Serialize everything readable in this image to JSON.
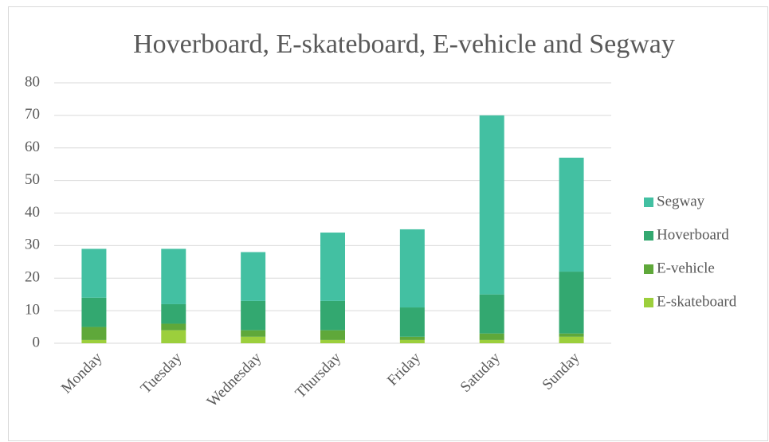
{
  "chart_data": {
    "type": "stacked-bar",
    "title": "Hoverboard, E-skateboard, E-vehicle and Segway",
    "categories": [
      "Monday",
      "Tuesday",
      "Wednesday",
      "Thursday",
      "Friday",
      "Satuday",
      "Sunday"
    ],
    "series": [
      {
        "name": "E-skateboard",
        "color": "#9ccf3c",
        "values": [
          1,
          4,
          2,
          1,
          1,
          1,
          2
        ]
      },
      {
        "name": "E-vehicle",
        "color": "#5fa83a",
        "values": [
          4,
          2,
          2,
          3,
          1,
          2,
          1
        ]
      },
      {
        "name": "Hoverboard",
        "color": "#33a870",
        "values": [
          9,
          6,
          9,
          9,
          9,
          12,
          19
        ]
      },
      {
        "name": "Segway",
        "color": "#43c0a2",
        "values": [
          15,
          17,
          15,
          21,
          24,
          55,
          35
        ]
      }
    ],
    "ylim": [
      0,
      80
    ],
    "yticks": [
      0,
      10,
      20,
      30,
      40,
      50,
      60,
      70,
      80
    ],
    "grid": true,
    "legend": "right"
  }
}
